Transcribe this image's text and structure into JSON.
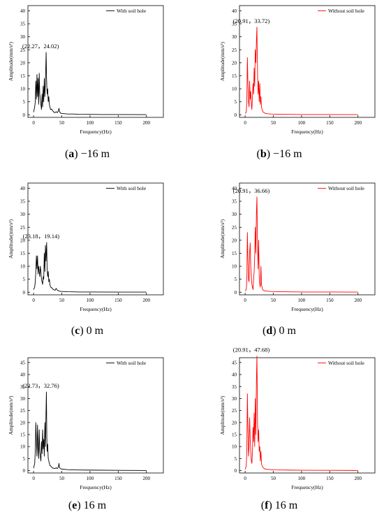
{
  "figure": {
    "panels": [
      {
        "letter": "a",
        "label_text": " −16 m"
      },
      {
        "letter": "b",
        "label_text": " −16 m"
      },
      {
        "letter": "c",
        "label_text": " 0 m"
      },
      {
        "letter": "d",
        "label_text": " 0 m"
      },
      {
        "letter": "e",
        "label_text": " 16 m"
      },
      {
        "letter": "f",
        "label_text": " 16 m"
      }
    ]
  },
  "chart_data": [
    {
      "type": "line",
      "panel": "a",
      "xlabel": "Frequency(Hz)",
      "ylabel": "Amplitude(mm/s²)",
      "xlim": [
        -10,
        230
      ],
      "ylim": [
        -1,
        42
      ],
      "xticks": [
        0,
        50,
        100,
        150,
        200
      ],
      "yticks": [
        0,
        5,
        10,
        15,
        20,
        25,
        30,
        35,
        40
      ],
      "series": [
        {
          "name": "With soil hole",
          "color": "#000000",
          "x": [
            0,
            2,
            3,
            4,
            5,
            6,
            7,
            8,
            9,
            10,
            11,
            12,
            13,
            14,
            15,
            16,
            17,
            18,
            19,
            20,
            21,
            22.27,
            23,
            24,
            25,
            26,
            27,
            28,
            29,
            30,
            32,
            34,
            36,
            38,
            40,
            42,
            44,
            45,
            46,
            48,
            50,
            55,
            60,
            70,
            80,
            100,
            120,
            150,
            200
          ],
          "y": [
            1,
            3,
            5,
            13,
            6,
            15.5,
            7,
            14,
            4,
            16,
            8,
            6,
            4,
            2,
            8,
            3,
            11,
            5,
            14,
            7,
            12,
            24.02,
            14,
            8,
            10,
            5,
            7,
            4,
            3,
            2,
            2.2,
            1.5,
            1,
            0.8,
            1.2,
            0.8,
            1.5,
            2.5,
            1.2,
            0.6,
            0.5,
            0.4,
            0.3,
            0.3,
            0.2,
            0.15,
            0.1,
            0.1,
            0.05
          ]
        }
      ],
      "annotation": {
        "text": "(22.27，24.02)",
        "x": 22.27,
        "y": 24.02
      }
    },
    {
      "type": "line",
      "panel": "b",
      "xlabel": "Frequency(Hz)",
      "ylabel": "Amplitude(mm/s²)",
      "xlim": [
        -10,
        230
      ],
      "ylim": [
        -1,
        42
      ],
      "xticks": [
        0,
        50,
        100,
        150,
        200
      ],
      "yticks": [
        0,
        5,
        10,
        15,
        20,
        25,
        30,
        35,
        40
      ],
      "series": [
        {
          "name": "Without soil hole",
          "color": "#ff0000",
          "x": [
            0,
            2,
            3,
            4,
            5,
            6,
            7,
            8,
            9,
            10,
            11,
            12,
            13,
            14,
            15,
            16,
            17,
            18,
            19,
            20,
            20.91,
            21.5,
            22,
            23,
            24,
            25,
            26,
            27,
            28,
            29,
            30,
            32,
            34,
            36,
            40,
            45,
            50,
            60,
            80,
            100,
            150,
            200
          ],
          "y": [
            0.5,
            1,
            5,
            22,
            12,
            5,
            3,
            13,
            6,
            9,
            4,
            2,
            7,
            12,
            8,
            18,
            11,
            25,
            20,
            28,
            33.72,
            24,
            16,
            8,
            13,
            5,
            12,
            4,
            7,
            3,
            2,
            1,
            0.8,
            0.5,
            0.4,
            0.3,
            0.25,
            0.2,
            0.15,
            0.1,
            0.08,
            0.05
          ]
        }
      ],
      "annotation": {
        "text": "(20.91，33.72)",
        "x": 20.91,
        "y": 33.72
      }
    },
    {
      "type": "line",
      "panel": "c",
      "xlabel": "Frequency(Hz)",
      "ylabel": "Amplitude(mm/s²)",
      "xlim": [
        -10,
        230
      ],
      "ylim": [
        -1,
        42
      ],
      "xticks": [
        0,
        50,
        100,
        150,
        200
      ],
      "yticks": [
        0,
        5,
        10,
        15,
        20,
        25,
        30,
        35,
        40
      ],
      "series": [
        {
          "name": "With soil hole",
          "color": "#000000",
          "x": [
            0,
            2,
            3,
            4,
            5,
            6,
            7,
            8,
            9,
            10,
            11,
            12,
            13,
            14,
            15,
            16,
            17,
            18,
            19,
            20,
            21,
            22,
            23.18,
            24,
            25,
            26,
            27,
            28,
            29,
            30,
            32,
            34,
            36,
            38,
            40,
            42,
            44,
            46,
            48,
            50,
            60,
            70,
            80,
            100,
            150,
            200
          ],
          "y": [
            1,
            2,
            4,
            8,
            14,
            9,
            14,
            7,
            10,
            8,
            6,
            10,
            8,
            5,
            4,
            3,
            6,
            5,
            15,
            8,
            18,
            12,
            19.14,
            9,
            6,
            8,
            4,
            5,
            3,
            2,
            1.8,
            1.2,
            1,
            0.7,
            1.5,
            0.8,
            0.6,
            0.4,
            0.3,
            0.3,
            0.2,
            0.15,
            0.1,
            0.1,
            0.05,
            0.05
          ]
        }
      ],
      "annotation": {
        "text": "(23.18，19.14)",
        "x": 23.18,
        "y": 19.14
      }
    },
    {
      "type": "line",
      "panel": "d",
      "xlabel": "Frequency(Hz)",
      "ylabel": "Amplitude(mm/s²)",
      "xlim": [
        -10,
        230
      ],
      "ylim": [
        -1,
        42
      ],
      "xticks": [
        0,
        50,
        100,
        150,
        200
      ],
      "yticks": [
        0,
        5,
        10,
        15,
        20,
        25,
        30,
        35,
        40
      ],
      "series": [
        {
          "name": "Without soil hole",
          "color": "#ff0000",
          "x": [
            0,
            2,
            3,
            4,
            5,
            6,
            7,
            8,
            9,
            10,
            11,
            12,
            13,
            14,
            15,
            16,
            17,
            18,
            19,
            20,
            20.91,
            21.5,
            22,
            23,
            24,
            25,
            26,
            27,
            28,
            29,
            30,
            31,
            32,
            34,
            36,
            40,
            45,
            50,
            60,
            80,
            100,
            150,
            200
          ],
          "y": [
            0.5,
            1,
            4,
            23,
            13,
            5,
            4,
            15,
            19,
            10,
            6,
            3,
            2,
            1,
            5,
            8,
            14,
            25,
            15,
            30,
            36.66,
            26,
            18,
            9,
            20,
            6,
            3,
            2,
            10,
            3,
            2,
            1,
            0.8,
            0.6,
            0.5,
            0.4,
            0.3,
            0.25,
            0.2,
            0.15,
            0.1,
            0.08,
            0.05
          ]
        }
      ],
      "annotation": {
        "text": "(20.91，36.66)",
        "x": 20.91,
        "y": 36.66
      }
    },
    {
      "type": "line",
      "panel": "e",
      "xlabel": "Frequency(Hz)",
      "ylabel": "Amplitude(mm/s²)",
      "xlim": [
        -10,
        230
      ],
      "ylim": [
        -1,
        47
      ],
      "xticks": [
        0,
        50,
        100,
        150,
        200
      ],
      "yticks": [
        0,
        5,
        10,
        15,
        20,
        25,
        30,
        35,
        40,
        45
      ],
      "series": [
        {
          "name": "With soil hole",
          "color": "#000000",
          "x": [
            0,
            2,
            3,
            4,
            5,
            6,
            7,
            8,
            9,
            10,
            11,
            12,
            13,
            14,
            15,
            16,
            17,
            18,
            19,
            20,
            21,
            22,
            22.73,
            23.5,
            24,
            25,
            26,
            27,
            28,
            29,
            30,
            32,
            34,
            36,
            38,
            40,
            42,
            44,
            45,
            46,
            48,
            50,
            60,
            70,
            80,
            100,
            150,
            200
          ],
          "y": [
            1,
            3,
            8,
            20,
            12,
            6,
            19,
            10,
            5,
            17,
            8,
            6,
            4,
            12,
            7,
            17,
            9,
            13,
            6,
            20,
            10,
            24,
            32.76,
            14,
            8,
            11,
            5,
            4,
            3,
            2,
            2,
            1.5,
            1,
            1,
            0.8,
            1.2,
            0.8,
            1.5,
            3,
            1.2,
            0.8,
            0.6,
            0.4,
            0.3,
            0.25,
            0.2,
            0.1,
            0.05
          ]
        }
      ],
      "annotation": {
        "text": "(22.73，32.76)",
        "x": 22.73,
        "y": 32.76
      }
    },
    {
      "type": "line",
      "panel": "f",
      "xlabel": "Frequency(Hz)",
      "ylabel": "Amplitude(mm/s²)",
      "xlim": [
        -10,
        230
      ],
      "ylim": [
        -1,
        47
      ],
      "xticks": [
        0,
        50,
        100,
        150,
        200
      ],
      "yticks": [
        0,
        5,
        10,
        15,
        20,
        25,
        30,
        35,
        40,
        45
      ],
      "series": [
        {
          "name": "Without soil hole",
          "color": "#ff0000",
          "x": [
            0,
            2,
            3,
            4,
            5,
            6,
            7,
            8,
            9,
            10,
            11,
            12,
            13,
            14,
            15,
            16,
            17,
            18,
            19,
            20,
            20.91,
            21.5,
            22,
            23,
            24,
            25,
            26,
            27,
            28,
            29,
            30,
            32,
            34,
            36,
            40,
            45,
            50,
            60,
            80,
            100,
            150,
            200
          ],
          "y": [
            0.5,
            2,
            8,
            32,
            18,
            6,
            10,
            22,
            13,
            8,
            4,
            3,
            8,
            18,
            12,
            24,
            10,
            30,
            15,
            37,
            47.68,
            34,
            20,
            12,
            17,
            8,
            10,
            4,
            8,
            3,
            2,
            1.2,
            0.8,
            0.6,
            0.5,
            0.4,
            0.3,
            0.25,
            0.2,
            0.15,
            0.1,
            0.05
          ]
        }
      ],
      "annotation": {
        "text": "(20.91，47.68)",
        "x": 20.91,
        "y": 47.68
      }
    }
  ]
}
